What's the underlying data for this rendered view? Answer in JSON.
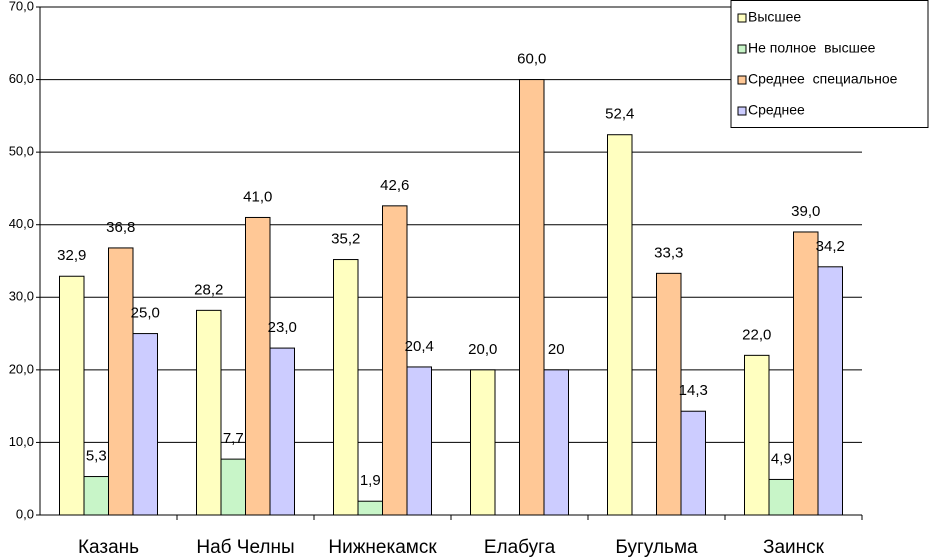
{
  "chart_data": {
    "type": "bar",
    "categories": [
      "Казань",
      "Наб Челны",
      "Нижнекамск",
      "Елабуга",
      "Бугульма",
      "Заинск"
    ],
    "series": [
      {
        "name": "Высшее",
        "color": "#ffffc0",
        "values": [
          32.9,
          28.2,
          35.2,
          20.0,
          52.4,
          22.0
        ],
        "value_labels": [
          "32,9",
          "28,2",
          "35,2",
          "20,0",
          "52,4",
          "22,0"
        ]
      },
      {
        "name": "Не полное  высшее",
        "color": "#c8f5c8",
        "values": [
          5.3,
          7.7,
          1.9,
          null,
          null,
          4.9
        ],
        "value_labels": [
          "5,3",
          "7,7",
          "1,9",
          null,
          null,
          "4,9"
        ]
      },
      {
        "name": "Среднее  специальное",
        "color": "#ffc896",
        "values": [
          36.8,
          41.0,
          42.6,
          60.0,
          33.3,
          39.0
        ],
        "value_labels": [
          "36,8",
          "41,0",
          "42,6",
          "60,0",
          "33,3",
          "39,0"
        ]
      },
      {
        "name": "Среднее",
        "color": "#ccccff",
        "values": [
          25.0,
          23.0,
          20.4,
          20,
          14.3,
          34.2
        ],
        "value_labels": [
          "25,0",
          "23,0",
          "20,4",
          "20",
          "14,3",
          "34,2"
        ]
      }
    ],
    "ylim": [
      0,
      70
    ],
    "yticks": [
      {
        "value": 0,
        "label": "0,0"
      },
      {
        "value": 10,
        "label": "10,0"
      },
      {
        "value": 20,
        "label": "20,0"
      },
      {
        "value": 30,
        "label": "30,0"
      },
      {
        "value": 40,
        "label": "40,0"
      },
      {
        "value": 50,
        "label": "50,0"
      },
      {
        "value": 60,
        "label": "60,0"
      },
      {
        "value": 70,
        "label": "70,0"
      }
    ],
    "grid": true,
    "legend": "top-right"
  }
}
